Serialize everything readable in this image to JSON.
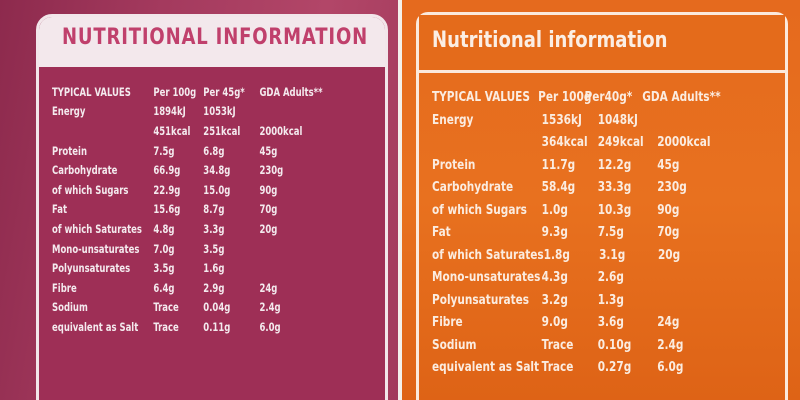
{
  "left": {
    "title": "NUTRITIONAL INFORMATION",
    "columns": [
      "TYPICAL VALUES",
      "Per 100g",
      "Per 45g*",
      "GDA Adults**"
    ],
    "rows": [
      [
        "Energy",
        "1894kJ",
        "1053kJ",
        ""
      ],
      [
        "",
        "451kcal",
        "251kcal",
        "2000kcal"
      ],
      [
        "Protein",
        "7.5g",
        "6.8g",
        "45g"
      ],
      [
        "Carbohydrate",
        "66.9g",
        "34.8g",
        "230g"
      ],
      [
        "of which Sugars",
        "22.9g",
        "15.0g",
        "90g"
      ],
      [
        "Fat",
        "15.6g",
        "8.7g",
        "70g"
      ],
      [
        "of which Saturates",
        "4.8g",
        "3.3g",
        "20g"
      ],
      [
        "Mono-unsaturates",
        "7.0g",
        "3.5g",
        ""
      ],
      [
        "Polyunsaturates",
        "3.5g",
        "1.6g",
        ""
      ],
      [
        "Fibre",
        "6.4g",
        "2.9g",
        "24g"
      ],
      [
        "Sodium",
        "Trace",
        "0.04g",
        "2.4g"
      ],
      [
        "equivalent as Salt",
        "Trace",
        "0.11g",
        "6.0g"
      ]
    ],
    "colors": {
      "panel": "#9e2f56",
      "title_bar": "#f3e8ec",
      "title_text": "#c0406c",
      "text": "#f4eaee"
    }
  },
  "right": {
    "title": "Nutritional information",
    "columns": [
      "TYPICAL VALUES",
      "Per 100g",
      "Per40g*",
      "GDA Adults**"
    ],
    "rows": [
      [
        "Energy",
        "1536kJ",
        "1048kJ",
        ""
      ],
      [
        "",
        "364kcal",
        "249kcal",
        "2000kcal"
      ],
      [
        "Protein",
        "11.7g",
        "12.2g",
        "45g"
      ],
      [
        "Carbohydrate",
        "58.4g",
        "33.3g",
        "230g"
      ],
      [
        "of which Sugars",
        "1.0g",
        "10.3g",
        "90g"
      ],
      [
        "Fat",
        "9.3g",
        "7.5g",
        "70g"
      ],
      [
        "of which Saturates",
        "1.8g",
        "3.1g",
        "20g"
      ],
      [
        "Mono-unsaturates",
        "4.3g",
        "2.6g",
        ""
      ],
      [
        "Polyunsaturates",
        "3.2g",
        "1.3g",
        ""
      ],
      [
        "Fibre",
        "9.0g",
        "3.6g",
        "24g"
      ],
      [
        "Sodium",
        "Trace",
        "0.10g",
        "2.4g"
      ],
      [
        "equivalent as Salt",
        "Trace",
        "0.27g",
        "6.0g"
      ]
    ],
    "colors": {
      "panel": "#e56a1e",
      "frame": "#fbe9dc",
      "text": "#fbece0"
    }
  }
}
